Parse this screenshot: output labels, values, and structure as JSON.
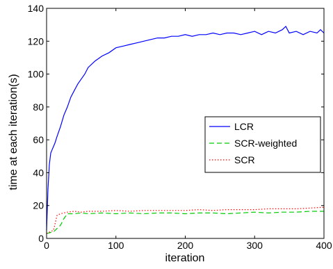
{
  "chart_data": {
    "type": "line",
    "title": "",
    "xlabel": "iteration",
    "ylabel": "time at each iteration(s)",
    "xlim": [
      0,
      400
    ],
    "ylim": [
      0,
      140
    ],
    "xticks": [
      0,
      100,
      200,
      300,
      400
    ],
    "yticks": [
      0,
      20,
      40,
      60,
      80,
      100,
      120,
      140
    ],
    "grid": false,
    "legend_position": "right",
    "series": [
      {
        "name": "LCR",
        "color": "#0000ff",
        "dash": "solid",
        "x": [
          0,
          2,
          4,
          6,
          8,
          10,
          12,
          15,
          20,
          25,
          30,
          35,
          40,
          45,
          50,
          55,
          60,
          70,
          80,
          90,
          100,
          110,
          120,
          130,
          140,
          150,
          160,
          170,
          180,
          190,
          200,
          210,
          220,
          230,
          240,
          250,
          260,
          270,
          280,
          290,
          300,
          310,
          320,
          330,
          340,
          345,
          350,
          360,
          370,
          380,
          390,
          395,
          400
        ],
        "values": [
          5,
          30,
          45,
          52,
          54,
          56,
          58,
          62,
          68,
          75,
          80,
          86,
          90,
          94,
          97,
          100,
          104,
          108,
          111,
          113,
          116,
          117,
          118,
          119,
          120,
          121,
          122,
          122,
          123,
          123,
          124,
          123,
          124,
          124,
          125,
          124,
          125,
          125,
          124,
          125,
          126,
          124,
          126,
          125,
          127,
          129,
          125,
          126,
          124,
          126,
          125,
          127,
          125
        ]
      },
      {
        "name": "SCR-weighted",
        "color": "#00cc00",
        "dash": "dashed",
        "x": [
          0,
          10,
          20,
          25,
          30,
          40,
          50,
          60,
          80,
          100,
          120,
          140,
          160,
          180,
          200,
          220,
          240,
          260,
          280,
          300,
          320,
          340,
          360,
          380,
          400
        ],
        "values": [
          3,
          4,
          8,
          12,
          15,
          15,
          15.5,
          15,
          15.5,
          15,
          15.5,
          15,
          15.5,
          15.5,
          15,
          15.5,
          15.5,
          15,
          15.5,
          16,
          15.5,
          16,
          16,
          16.5,
          16.5
        ]
      },
      {
        "name": "SCR",
        "color": "#ff0000",
        "dash": "dotted",
        "x": [
          0,
          10,
          15,
          20,
          30,
          40,
          50,
          60,
          80,
          100,
          120,
          140,
          160,
          180,
          200,
          220,
          240,
          260,
          280,
          300,
          320,
          340,
          360,
          380,
          400
        ],
        "values": [
          3,
          5,
          14,
          15,
          16,
          16.5,
          16,
          16.5,
          16.5,
          17,
          16.5,
          17,
          17,
          17,
          17,
          17.5,
          17,
          17.5,
          17.5,
          17.5,
          18,
          18,
          18,
          18.5,
          19
        ]
      }
    ]
  }
}
